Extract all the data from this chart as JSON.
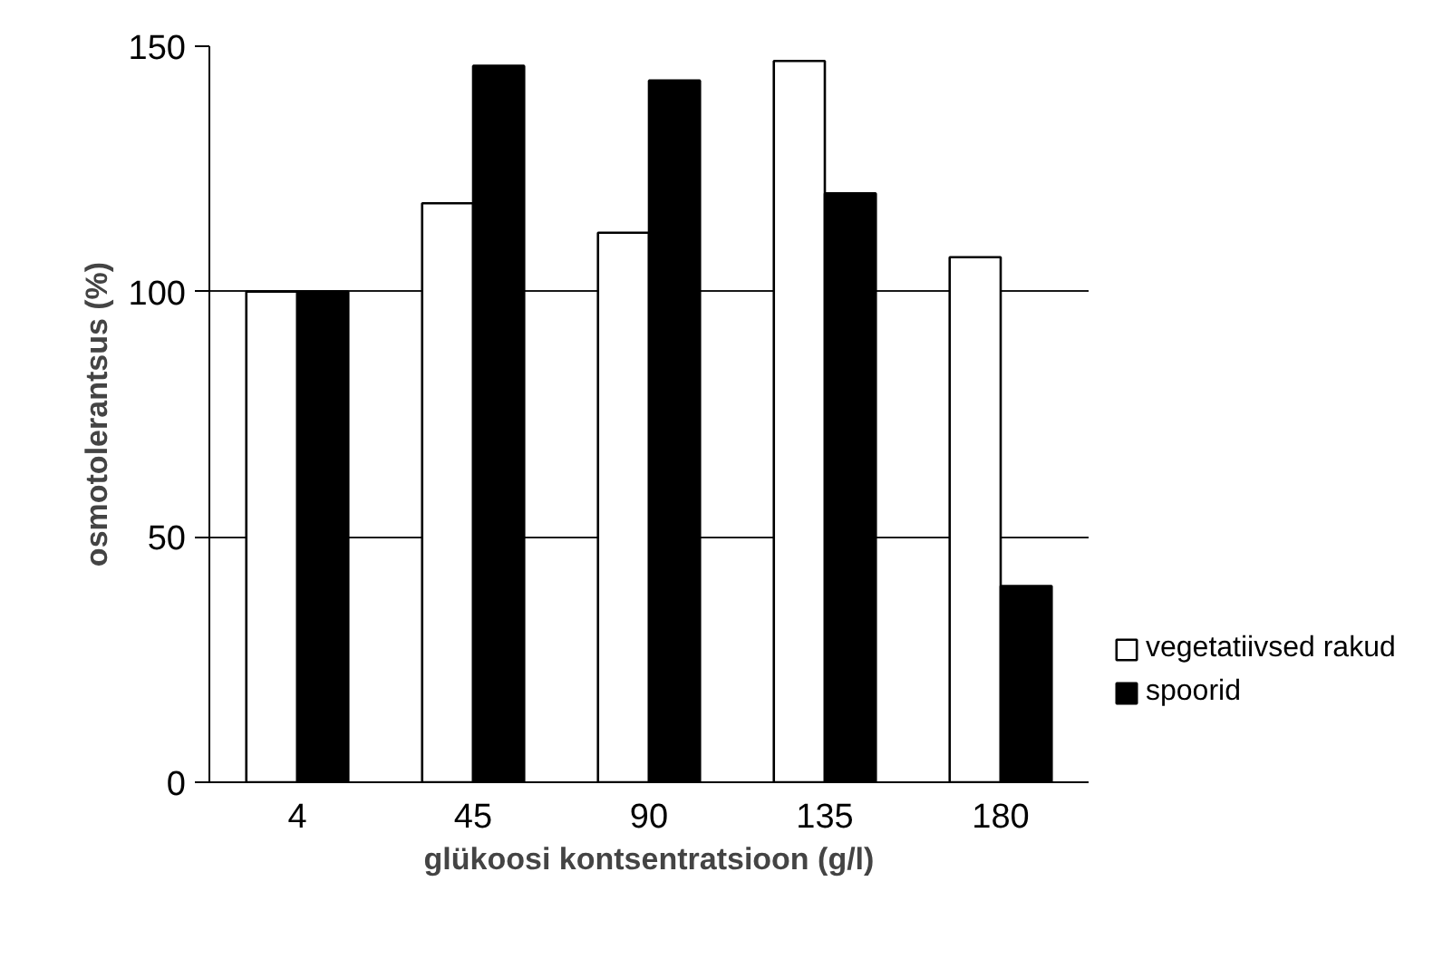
{
  "chart_data": {
    "type": "bar",
    "xlabel": "glükoosi kontsentratsioon (g/l)",
    "ylabel": "osmotolerantsus (%)",
    "categories": [
      "4",
      "45",
      "90",
      "135",
      "180"
    ],
    "series": [
      {
        "name": "vegetatiivsed rakud",
        "color": "#ffffff",
        "values": [
          100,
          118,
          112,
          147,
          107
        ]
      },
      {
        "name": "spoorid",
        "color": "#000000",
        "values": [
          100,
          146,
          143,
          120,
          40
        ]
      }
    ],
    "ylim": [
      0,
      150
    ],
    "yticks": [
      0,
      50,
      100,
      150
    ],
    "grid": "y",
    "legend": "right"
  }
}
